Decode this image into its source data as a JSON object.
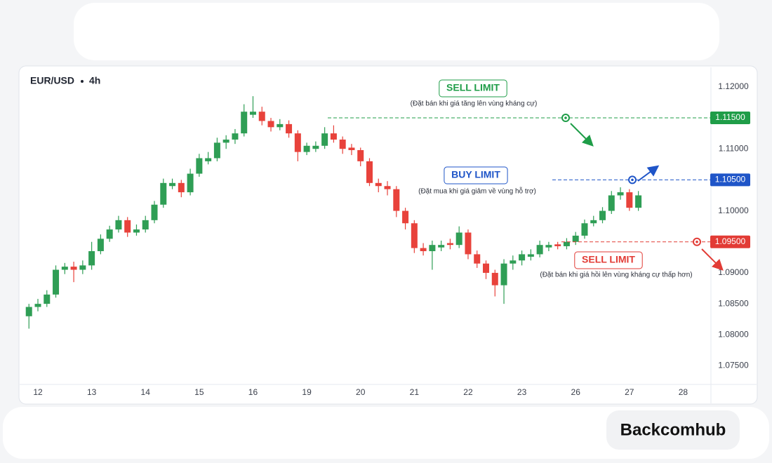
{
  "chart_data": {
    "type": "candlestick",
    "title": "EUR/USD",
    "timeframe": "4h",
    "categories": [
      null,
      "12",
      null,
      null,
      null,
      null,
      null,
      "13",
      null,
      null,
      null,
      null,
      null,
      "14",
      null,
      null,
      null,
      null,
      null,
      "15",
      null,
      null,
      null,
      null,
      null,
      "16",
      null,
      null,
      null,
      null,
      null,
      "19",
      null,
      null,
      null,
      null,
      null,
      "20",
      null,
      null,
      null,
      null,
      null,
      "21",
      null,
      null,
      null,
      null,
      null,
      "22",
      null,
      null,
      null,
      null,
      null,
      "23",
      null,
      null,
      null,
      null,
      null,
      "26",
      null,
      null,
      null,
      null,
      null,
      "27",
      null,
      null,
      null,
      null,
      null,
      "28",
      null
    ],
    "open": [
      1.083,
      1.0845,
      1.085,
      1.0865,
      1.0905,
      1.091,
      1.0905,
      1.0912,
      1.0935,
      1.0955,
      1.097,
      1.0985,
      1.0965,
      1.097,
      1.0985,
      1.101,
      1.104,
      1.1045,
      1.103,
      1.106,
      1.108,
      1.1085,
      1.111,
      1.1115,
      1.1125,
      1.1155,
      1.116,
      1.1145,
      1.1135,
      1.114,
      1.1125,
      1.1095,
      1.11,
      1.1105,
      1.1125,
      1.1115,
      1.1102,
      1.1098,
      1.108,
      1.1045,
      1.104,
      1.1035,
      1.1,
      1.098,
      1.094,
      1.0935,
      1.0941,
      1.0948,
      1.0945,
      1.0965,
      1.093,
      1.0915,
      1.09,
      1.088,
      1.0915,
      1.092,
      1.0926,
      1.093,
      1.0941,
      1.0946,
      1.0943,
      1.095,
      1.096,
      1.098,
      1.0985,
      1.1,
      1.1025,
      1.103,
      1.1005,
      null,
      null,
      null,
      null,
      null,
      null
    ],
    "high": [
      1.085,
      1.0858,
      1.0872,
      1.0912,
      1.0916,
      1.0918,
      1.092,
      1.095,
      1.0962,
      1.0976,
      1.0992,
      1.099,
      1.0978,
      1.0992,
      1.1016,
      1.1052,
      1.1052,
      1.105,
      1.1068,
      1.1092,
      1.1095,
      1.1118,
      1.1122,
      1.1132,
      1.1172,
      1.1185,
      1.1168,
      1.115,
      1.1148,
      1.1146,
      1.113,
      1.111,
      1.1112,
      1.1135,
      1.1138,
      1.112,
      1.1108,
      1.1102,
      1.1085,
      1.1052,
      1.1048,
      1.104,
      1.1005,
      1.0985,
      1.0948,
      1.0952,
      1.0952,
      1.0955,
      1.0975,
      1.097,
      1.0936,
      1.092,
      1.0905,
      1.0922,
      1.0928,
      1.0936,
      1.0938,
      1.0952,
      1.095,
      1.095,
      1.0956,
      1.0966,
      1.0986,
      1.0992,
      1.1006,
      1.1032,
      1.1038,
      1.1035,
      1.1032,
      null,
      null,
      null,
      null,
      null,
      null
    ],
    "low": [
      1.081,
      1.0838,
      1.0845,
      1.086,
      1.0898,
      1.0885,
      1.0898,
      1.0905,
      1.093,
      1.095,
      1.0965,
      1.0958,
      1.096,
      1.0965,
      1.098,
      1.1005,
      1.1035,
      1.1022,
      1.1025,
      1.1055,
      1.1075,
      1.108,
      1.11,
      1.1108,
      1.112,
      1.115,
      1.1138,
      1.1128,
      1.113,
      1.1118,
      1.108,
      1.109,
      1.1095,
      1.11,
      1.111,
      1.1092,
      1.109,
      1.1072,
      1.104,
      1.103,
      1.1025,
      1.099,
      1.097,
      1.0932,
      1.0928,
      1.0905,
      1.0935,
      1.0938,
      1.094,
      1.0922,
      1.0908,
      1.089,
      1.0862,
      1.085,
      1.0905,
      1.0912,
      1.092,
      1.0925,
      1.0935,
      1.0938,
      1.0938,
      1.0945,
      1.0955,
      1.0975,
      1.098,
      1.0995,
      1.1018,
      1.1,
      1.1,
      null,
      null,
      null,
      null,
      null,
      null
    ],
    "close": [
      1.0845,
      1.085,
      1.0865,
      1.0905,
      1.091,
      1.0905,
      1.0912,
      1.0935,
      1.0955,
      1.097,
      1.0985,
      1.0965,
      1.097,
      1.0985,
      1.101,
      1.1045,
      1.1045,
      1.103,
      1.106,
      1.1085,
      1.1085,
      1.111,
      1.1115,
      1.1125,
      1.116,
      1.116,
      1.1145,
      1.1135,
      1.114,
      1.1125,
      1.1095,
      1.1105,
      1.1105,
      1.1125,
      1.1115,
      1.11,
      1.1098,
      1.108,
      1.1045,
      1.104,
      1.1035,
      1.1,
      1.098,
      1.094,
      1.0935,
      1.0945,
      1.0945,
      1.0945,
      1.0965,
      1.093,
      1.0915,
      1.09,
      1.088,
      1.0915,
      1.092,
      1.093,
      1.093,
      1.0945,
      1.0945,
      1.0943,
      1.095,
      1.096,
      1.098,
      1.0985,
      1.1,
      1.1025,
      1.103,
      1.1005,
      1.1025,
      null,
      null,
      null,
      null,
      null,
      null
    ],
    "up_color": "#2f9e55",
    "down_color": "#e8423b",
    "ylim": [
      1.072,
      1.1227
    ],
    "yticks": [
      {
        "value": 1.075,
        "label": "1.07500"
      },
      {
        "value": 1.08,
        "label": "1.08000"
      },
      {
        "value": 1.085,
        "label": "1.08500"
      },
      {
        "value": 1.09,
        "label": "1.09000"
      },
      {
        "value": 1.095,
        "label": "1.09500"
      },
      {
        "value": 1.1,
        "label": "1.10000"
      },
      {
        "value": 1.105,
        "label": "1.10500"
      },
      {
        "value": 1.11,
        "label": "1.11000"
      },
      {
        "value": 1.115,
        "label": "1.11500"
      },
      {
        "value": 1.12,
        "label": "1.12000"
      }
    ],
    "grid": false,
    "levels": [
      {
        "value": 1.115,
        "label": "1.11500",
        "color": "#1f9d48"
      },
      {
        "value": 1.105,
        "label": "1.10500",
        "color": "#1f55c8"
      },
      {
        "value": 1.095,
        "label": "1.09500",
        "color": "#e23b35"
      }
    ],
    "annotations": [
      {
        "title": "SELL LIMIT",
        "text": "(Đặt bán khi giá tăng lên vùng kháng cự)",
        "color": "#1f9d48"
      },
      {
        "title": "BUY LIMIT",
        "text": "(Đặt mua khi giá giảm về vùng hỗ trợ)",
        "color": "#1f55c8"
      },
      {
        "title": "SELL LIMIT",
        "text": "(Đặt bán khi giá hồi lên vùng kháng cự thấp hơn)",
        "color": "#e23b35"
      }
    ]
  },
  "brand": "Backcomhub"
}
